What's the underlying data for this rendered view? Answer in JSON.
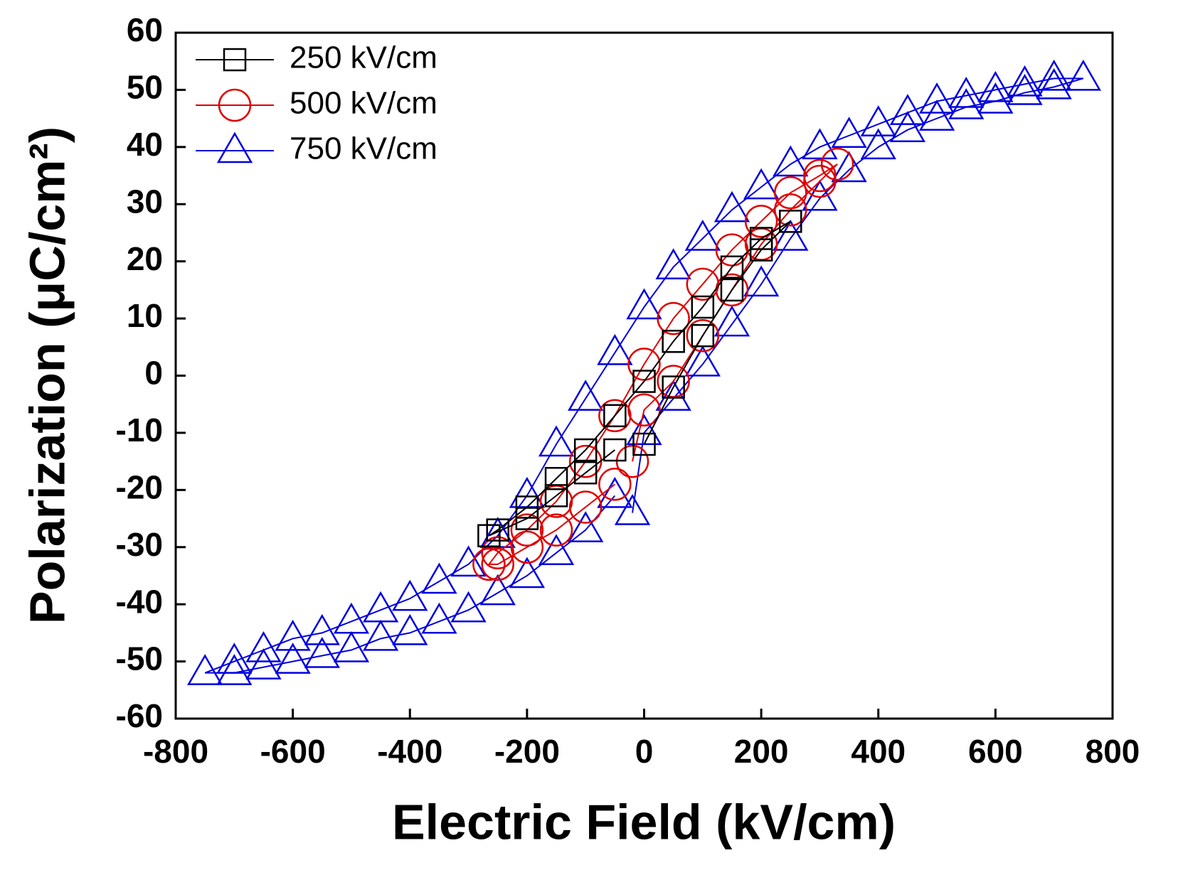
{
  "chart_data": {
    "type": "scatter",
    "xlabel": "Electric Field (kV/cm)",
    "ylabel": "Polarization (μC/cm²)",
    "xlim": [
      -800,
      800
    ],
    "xticks": [
      -800,
      -600,
      -400,
      -200,
      0,
      200,
      400,
      600,
      800
    ],
    "ylim": [
      -60,
      60
    ],
    "yticks": [
      -60,
      -50,
      -40,
      -30,
      -20,
      -10,
      0,
      10,
      20,
      30,
      40,
      50,
      60
    ],
    "legend": "upper left",
    "series": [
      {
        "name": "250 kV/cm",
        "color": "#000000",
        "marker": "square",
        "x": [
          0,
          50,
          100,
          150,
          200,
          250,
          200,
          150,
          100,
          50,
          0,
          -50,
          -100,
          -150,
          -200,
          -250,
          -265,
          -200,
          -150,
          -100,
          -50
        ],
        "values": [
          -12,
          -2,
          7,
          15,
          22,
          27,
          24,
          19,
          12,
          6,
          -1,
          -7,
          -13,
          -18,
          -23,
          -27,
          -28,
          -25,
          -21,
          -17,
          -13
        ]
      },
      {
        "name": "500 kV/cm",
        "color": "#e00000",
        "marker": "circle",
        "x": [
          -20,
          0,
          50,
          100,
          150,
          200,
          250,
          300,
          330,
          300,
          250,
          200,
          150,
          100,
          50,
          0,
          -50,
          -100,
          -150,
          -200,
          -250,
          -265,
          -250,
          -200,
          -150,
          -100,
          -50
        ],
        "values": [
          -15,
          -6,
          -1,
          7,
          15,
          23,
          29,
          34,
          37,
          35,
          32,
          27,
          22,
          16,
          10,
          2,
          -7,
          -15,
          -22,
          -27,
          -31,
          -33,
          -33,
          -30,
          -27,
          -23,
          -19
        ]
      },
      {
        "name": "750 kV/cm",
        "color": "#0000e0",
        "marker": "triangle",
        "x": [
          -20,
          0,
          50,
          100,
          150,
          200,
          250,
          300,
          350,
          400,
          450,
          500,
          550,
          600,
          650,
          700,
          750,
          700,
          650,
          600,
          550,
          500,
          450,
          400,
          350,
          300,
          250,
          200,
          150,
          100,
          50,
          0,
          -50,
          -100,
          -150,
          -200,
          -250,
          -300,
          -350,
          -400,
          -450,
          -500,
          -550,
          -600,
          -650,
          -700,
          -750,
          -700,
          -650,
          -600,
          -550,
          -500,
          -450,
          -400,
          -350,
          -300,
          -250,
          -200,
          -150,
          -100,
          -50
        ],
        "values": [
          -24,
          -10,
          -4,
          2,
          9,
          16,
          24,
          31,
          36,
          40,
          43,
          45,
          47,
          48,
          49.5,
          50.5,
          52,
          52,
          51,
          50,
          49,
          48,
          46,
          44,
          42,
          40,
          37,
          33,
          29,
          24,
          19,
          12,
          4,
          -4,
          -12,
          -21,
          -28,
          -33,
          -36,
          -39,
          -41,
          -43,
          -45,
          -46,
          -48,
          -50,
          -52,
          -52,
          -51,
          -50,
          -49,
          -48,
          -46,
          -45,
          -43,
          -41,
          -38,
          -35,
          -31,
          -27,
          -21
        ]
      }
    ]
  }
}
